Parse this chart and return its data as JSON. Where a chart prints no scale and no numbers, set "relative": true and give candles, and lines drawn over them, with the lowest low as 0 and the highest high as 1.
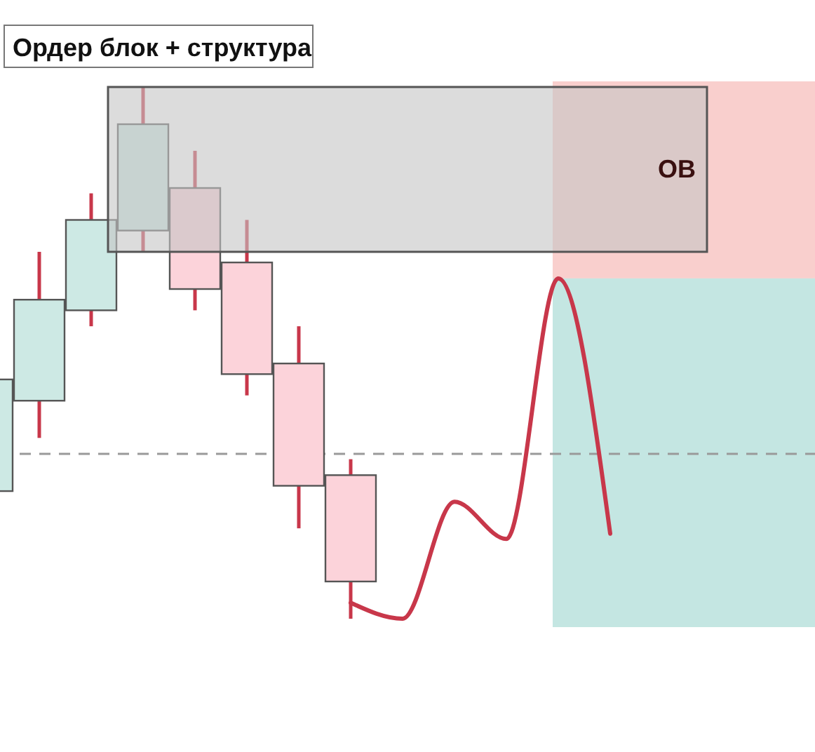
{
  "chart_data": {
    "type": "candlestick",
    "title": "Ордер блок + структура",
    "relative": true,
    "categories": [
      null,
      null,
      null,
      null,
      null,
      null,
      null,
      null,
      null,
      null,
      null,
      null,
      null,
      null,
      null,
      null
    ],
    "ohlc": [
      [
        0.24,
        0.45,
        0.24,
        0.45
      ],
      [
        0.41,
        0.69,
        0.34,
        0.6
      ],
      [
        0.58,
        0.8,
        0.55,
        0.75
      ],
      [
        0.73,
        1,
        0.69,
        0.93
      ],
      [
        0.81,
        0.88,
        0.58,
        0.62
      ],
      [
        0.67,
        0.75,
        0.42,
        0.46
      ],
      [
        0.48,
        0.55,
        0.17,
        0.25
      ],
      [
        0.27,
        0.3,
        0,
        0.07
      ],
      null,
      null,
      null,
      null,
      null,
      null,
      null,
      null
    ],
    "colors": [
      "#cde9e4",
      "#cde9e4",
      "#cde9e4",
      "#cde9e4",
      "#fcd3da",
      "#fcd3da",
      "#fcd3da",
      "#fcd3da",
      null,
      null,
      null,
      null,
      null,
      null,
      null,
      null
    ],
    "series": [
      {
        "type": "line",
        "color": "#c8374a",
        "values": [
          null,
          null,
          null,
          null,
          null,
          null,
          null,
          0.03,
          0,
          0.22,
          0.15,
          0.64,
          0.16,
          null,
          null,
          null
        ]
      }
    ],
    "ref_lines": [
      {
        "axis": "y",
        "value": 0.31,
        "color": "#9a9a9a",
        "line_style": "dashed"
      }
    ],
    "annotations": [
      "OB"
    ]
  }
}
